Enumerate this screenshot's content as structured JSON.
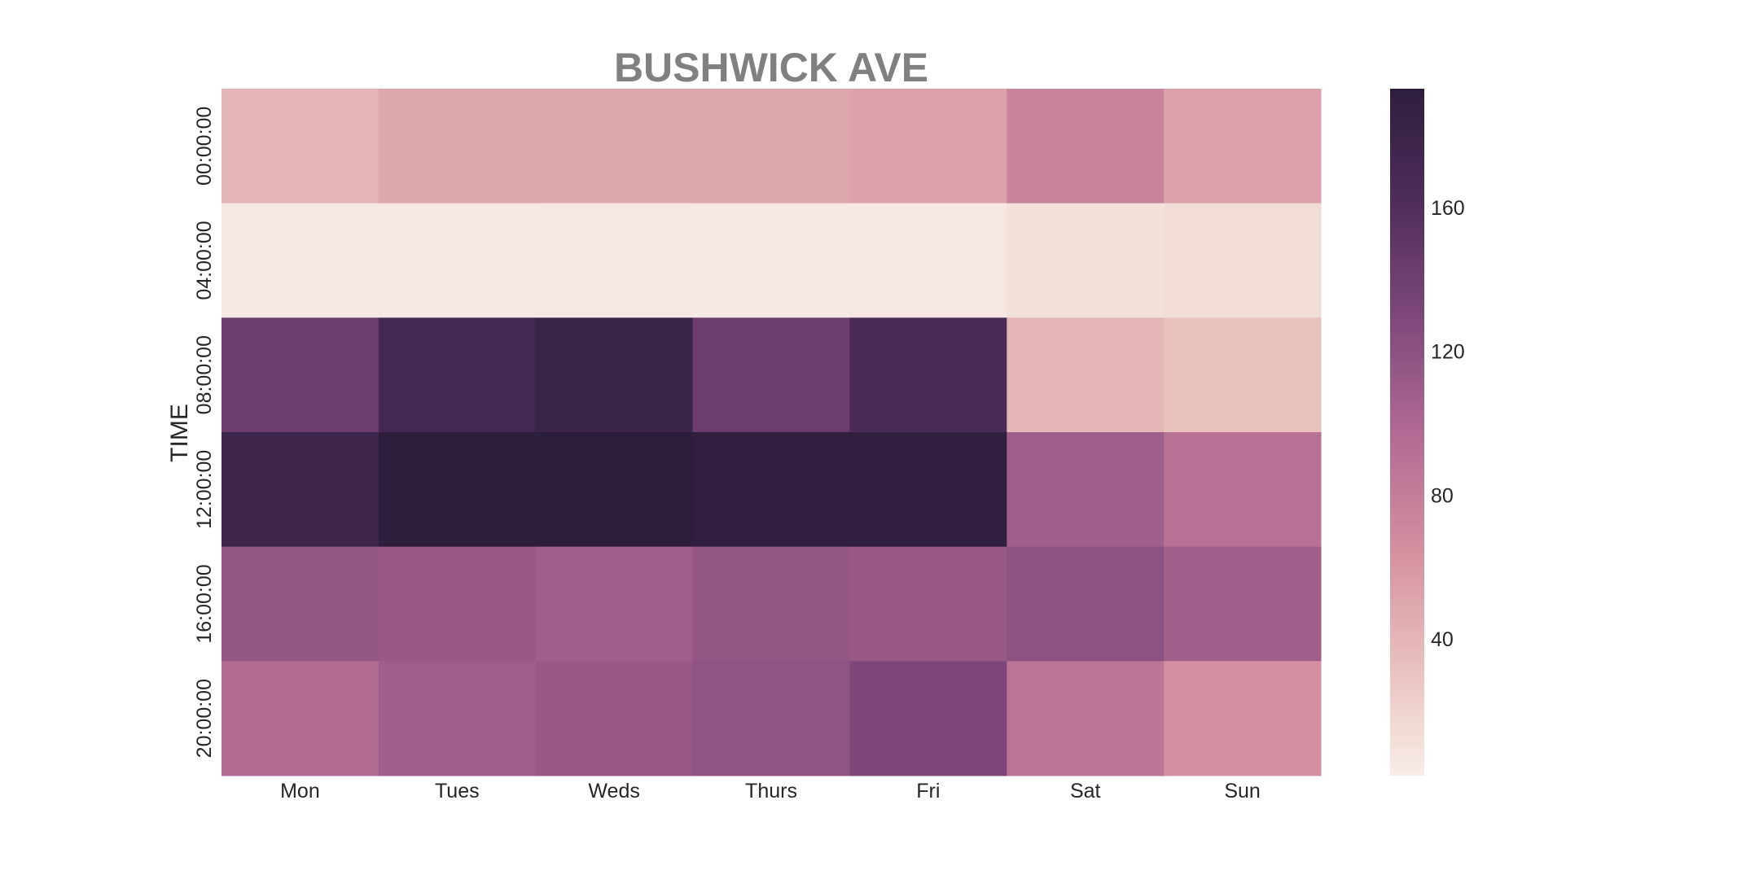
{
  "chart_data": {
    "type": "heatmap",
    "title": "BUSHWICK AVE",
    "xlabel": "",
    "ylabel": "TIME",
    "x_categories": [
      "Mon",
      "Tues",
      "Weds",
      "Thurs",
      "Fri",
      "Sat",
      "Sun"
    ],
    "y_categories": [
      "00:00:00",
      "04:00:00",
      "08:00:00",
      "12:00:00",
      "16:00:00",
      "20:00:00"
    ],
    "values": [
      [
        40,
        50,
        50,
        50,
        53,
        75,
        53
      ],
      [
        5,
        5,
        6,
        5,
        6,
        10,
        14
      ],
      [
        142,
        172,
        180,
        142,
        166,
        40,
        32
      ],
      [
        176,
        194,
        196,
        190,
        190,
        108,
        90
      ],
      [
        116,
        113,
        108,
        116,
        113,
        120,
        108
      ],
      [
        96,
        108,
        113,
        118,
        130,
        88,
        65
      ]
    ],
    "colorbar": {
      "min": 2,
      "max": 193,
      "ticks": [
        40,
        80,
        120,
        160
      ],
      "colors": [
        "#f8ede7",
        "#e8bfbc",
        "#d48e9f",
        "#b06a93",
        "#7e487b",
        "#4f2d5b",
        "#2d1e3e"
      ]
    },
    "grid": false
  }
}
